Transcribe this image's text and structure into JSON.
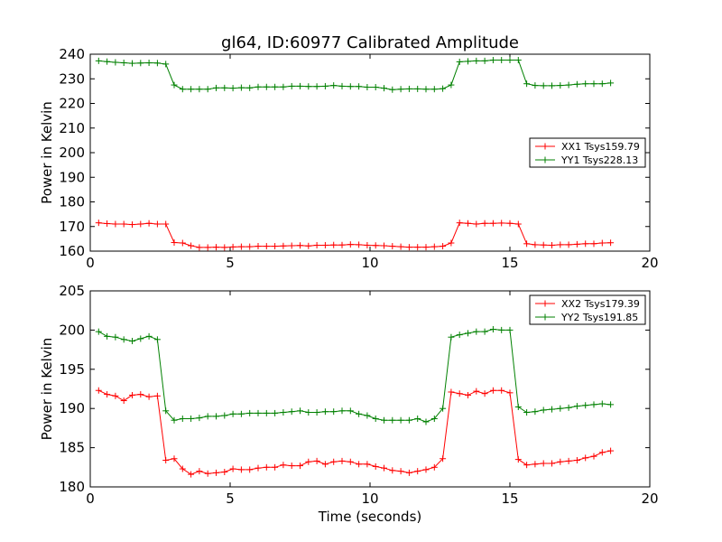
{
  "chart_data": [
    {
      "type": "line",
      "title": "gl64, ID:60977 Calibrated Amplitude",
      "xlabel": "",
      "ylabel": "Power in Kelvin",
      "xlim": [
        0,
        20
      ],
      "ylim": [
        160,
        240
      ],
      "xticks": [
        "0",
        "5",
        "10",
        "15",
        "20"
      ],
      "yticks": [
        "160",
        "170",
        "180",
        "190",
        "200",
        "210",
        "220",
        "230",
        "240"
      ],
      "grid": false,
      "legend_position": "center-right",
      "x": [
        0.3,
        0.6,
        0.9,
        1.2,
        1.5,
        1.8,
        2.1,
        2.4,
        2.7,
        3.0,
        3.3,
        3.6,
        3.9,
        4.2,
        4.5,
        4.8,
        5.1,
        5.4,
        5.7,
        6.0,
        6.3,
        6.6,
        6.9,
        7.2,
        7.5,
        7.8,
        8.1,
        8.4,
        8.7,
        9.0,
        9.3,
        9.6,
        9.9,
        10.2,
        10.5,
        10.8,
        11.1,
        11.4,
        11.7,
        12.0,
        12.3,
        12.6,
        12.9,
        13.2,
        13.5,
        13.8,
        14.1,
        14.4,
        14.7,
        15.0,
        15.3,
        15.6,
        15.9,
        16.2,
        16.5,
        16.8,
        17.1,
        17.4,
        17.7,
        18.0,
        18.3,
        18.6
      ],
      "series": [
        {
          "name": "XX1 Tsys159.79",
          "color": "#ff0000",
          "values": [
            171.5,
            171.2,
            171.0,
            171.0,
            170.8,
            171.0,
            171.3,
            171.0,
            171.0,
            163.5,
            163.3,
            162.2,
            161.5,
            161.5,
            161.6,
            161.5,
            161.7,
            161.8,
            161.8,
            162.0,
            162.0,
            162.0,
            162.1,
            162.2,
            162.3,
            162.1,
            162.4,
            162.4,
            162.5,
            162.5,
            162.7,
            162.6,
            162.4,
            162.3,
            162.2,
            162.0,
            161.8,
            161.6,
            161.6,
            161.6,
            161.8,
            162.0,
            163.3,
            171.5,
            171.3,
            171.0,
            171.3,
            171.3,
            171.4,
            171.3,
            171.0,
            163.0,
            162.6,
            162.5,
            162.4,
            162.6,
            162.6,
            162.8,
            163.0,
            163.0,
            163.3,
            163.4
          ]
        },
        {
          "name": "YY1 Tsys228.13",
          "color": "#008000",
          "values": [
            237.3,
            237.0,
            236.7,
            236.5,
            236.3,
            236.4,
            236.5,
            236.4,
            236.0,
            227.5,
            225.8,
            225.8,
            225.8,
            225.8,
            226.3,
            226.3,
            226.2,
            226.4,
            226.3,
            226.7,
            226.7,
            226.7,
            226.7,
            227.0,
            227.0,
            226.9,
            226.9,
            227.0,
            227.3,
            227.0,
            226.9,
            226.9,
            226.6,
            226.6,
            226.2,
            225.6,
            225.8,
            225.9,
            225.9,
            225.8,
            225.8,
            226.0,
            227.5,
            236.9,
            237.1,
            237.3,
            237.3,
            237.6,
            237.6,
            237.6,
            237.6,
            228.0,
            227.3,
            227.2,
            227.2,
            227.3,
            227.5,
            227.8,
            228.0,
            228.0,
            228.0,
            228.3
          ]
        }
      ]
    },
    {
      "type": "line",
      "title": "",
      "xlabel": "Time (seconds)",
      "ylabel": "Power in Kelvin",
      "xlim": [
        0,
        20
      ],
      "ylim": [
        180,
        205
      ],
      "xticks": [
        "0",
        "5",
        "10",
        "15",
        "20"
      ],
      "yticks": [
        "180",
        "185",
        "190",
        "195",
        "200",
        "205"
      ],
      "grid": false,
      "legend_position": "top-right",
      "x": [
        0.3,
        0.6,
        0.9,
        1.2,
        1.5,
        1.8,
        2.1,
        2.4,
        2.7,
        3.0,
        3.3,
        3.6,
        3.9,
        4.2,
        4.5,
        4.8,
        5.1,
        5.4,
        5.7,
        6.0,
        6.3,
        6.6,
        6.9,
        7.2,
        7.5,
        7.8,
        8.1,
        8.4,
        8.7,
        9.0,
        9.3,
        9.6,
        9.9,
        10.2,
        10.5,
        10.8,
        11.1,
        11.4,
        11.7,
        12.0,
        12.3,
        12.6,
        12.9,
        13.2,
        13.5,
        13.8,
        14.1,
        14.4,
        14.7,
        15.0,
        15.3,
        15.6,
        15.9,
        16.2,
        16.5,
        16.8,
        17.1,
        17.4,
        17.7,
        18.0,
        18.3,
        18.6
      ],
      "series": [
        {
          "name": "XX2 Tsys179.39",
          "color": "#ff0000",
          "values": [
            192.3,
            191.8,
            191.6,
            191.0,
            191.7,
            191.8,
            191.5,
            191.6,
            183.4,
            183.6,
            182.3,
            181.6,
            182.0,
            181.7,
            181.8,
            181.9,
            182.3,
            182.2,
            182.2,
            182.4,
            182.5,
            182.5,
            182.8,
            182.7,
            182.7,
            183.2,
            183.3,
            182.9,
            183.2,
            183.3,
            183.2,
            182.9,
            182.9,
            182.6,
            182.4,
            182.1,
            182.0,
            181.8,
            182.0,
            182.2,
            182.5,
            183.6,
            192.1,
            191.9,
            191.7,
            192.2,
            191.9,
            192.3,
            192.3,
            192.0,
            183.5,
            182.8,
            182.9,
            183.0,
            183.0,
            183.2,
            183.3,
            183.4,
            183.7,
            183.9,
            184.4,
            184.6
          ]
        },
        {
          "name": "YY2 Tsys191.85",
          "color": "#008000",
          "values": [
            199.8,
            199.2,
            199.1,
            198.8,
            198.6,
            198.9,
            199.2,
            198.8,
            189.7,
            188.5,
            188.7,
            188.7,
            188.8,
            189.0,
            189.0,
            189.1,
            189.3,
            189.3,
            189.4,
            189.4,
            189.4,
            189.4,
            189.5,
            189.6,
            189.7,
            189.5,
            189.5,
            189.6,
            189.6,
            189.7,
            189.7,
            189.3,
            189.1,
            188.7,
            188.5,
            188.5,
            188.5,
            188.5,
            188.7,
            188.3,
            188.7,
            190.0,
            199.1,
            199.4,
            199.6,
            199.8,
            199.8,
            200.1,
            200.0,
            200.0,
            190.2,
            189.5,
            189.6,
            189.8,
            189.9,
            190.0,
            190.1,
            190.3,
            190.4,
            190.5,
            190.6,
            190.5
          ]
        }
      ]
    }
  ]
}
